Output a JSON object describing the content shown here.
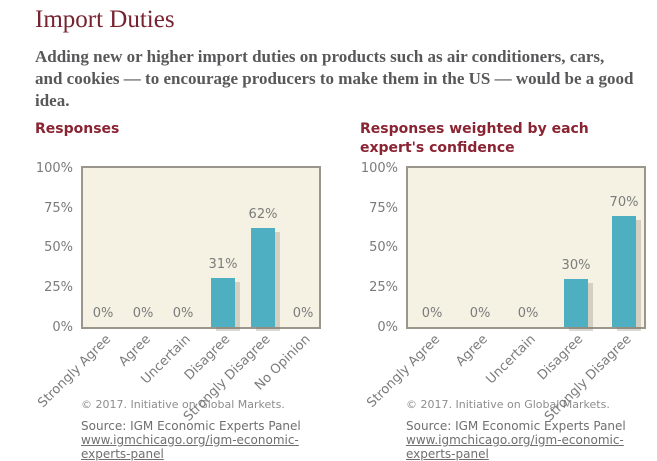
{
  "page": {
    "title": "Import Duties",
    "question": "Adding new or higher import duties on products such as air conditioners, cars, and cookies — to encourage producers to make them in the US — would be a good idea."
  },
  "footer": {
    "copyright": "© 2017. Initiative on Global Markets.",
    "source_label": "Source: IGM Economic Experts Panel",
    "source_url": "www.igmchicago.org/igm-economic-experts-panel"
  },
  "colors": {
    "bar": "#4dafc1",
    "page_title": "#76232f",
    "chart_heading": "#8a2332",
    "plot_background": "#f5f2e4",
    "plot_border": "#9a968b"
  },
  "chart_data": [
    {
      "type": "bar",
      "title": "Responses",
      "categories": [
        "Strongly Agree",
        "Agree",
        "Uncertain",
        "Disagree",
        "Strongly Disagree",
        "No Opinion"
      ],
      "values": [
        0,
        0,
        0,
        31,
        62,
        0
      ],
      "data_labels": [
        "0%",
        "0%",
        "0%",
        "31%",
        "62%",
        "0%"
      ],
      "yticks": [
        {
          "label": "0%",
          "value": 0
        },
        {
          "label": "25%",
          "value": 25
        },
        {
          "label": "50%",
          "value": 50
        },
        {
          "label": "75%",
          "value": 75
        },
        {
          "label": "100%",
          "value": 100
        }
      ],
      "ylim": [
        0,
        100
      ],
      "grid": false,
      "legend": false
    },
    {
      "type": "bar",
      "title": "Responses weighted by each expert's confidence",
      "categories": [
        "Strongly Agree",
        "Agree",
        "Uncertain",
        "Disagree",
        "Strongly Disagree"
      ],
      "values": [
        0,
        0,
        0,
        30,
        70
      ],
      "data_labels": [
        "0%",
        "0%",
        "0%",
        "30%",
        "70%"
      ],
      "yticks": [
        {
          "label": "0%",
          "value": 0
        },
        {
          "label": "25%",
          "value": 25
        },
        {
          "label": "50%",
          "value": 50
        },
        {
          "label": "75%",
          "value": 75
        },
        {
          "label": "100%",
          "value": 100
        }
      ],
      "ylim": [
        0,
        100
      ],
      "grid": false,
      "legend": false
    }
  ]
}
